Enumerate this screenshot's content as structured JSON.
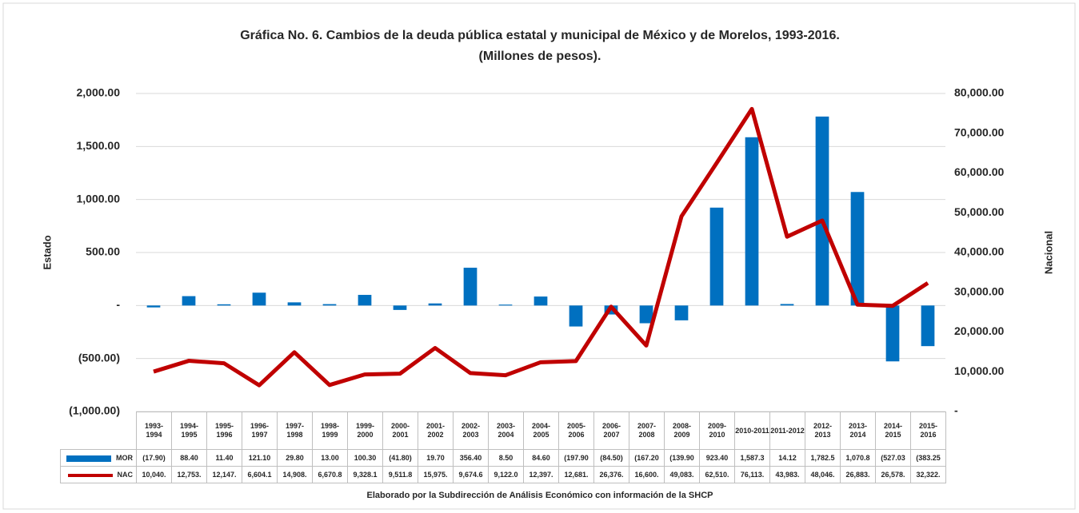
{
  "chart_data": {
    "type": "bar",
    "title": "Gráfica No. 6. Cambios de la deuda pública estatal y municipal de México y de Morelos, 1993-2016.",
    "subtitle": "(Millones de pesos).",
    "ylabel": "Estado",
    "y2label": "Nacional",
    "source": "Elaborado por la Subdirección de Análisis Económico con información de la SHCP",
    "categories": [
      "1993-1994",
      "1994-1995",
      "1995-1996",
      "1996-1997",
      "1997-1998",
      "1998-1999",
      "1999-2000",
      "2000-2001",
      "2001-2002",
      "2002-2003",
      "2003-2004",
      "2004-2005",
      "2005-2006",
      "2006-2007",
      "2007-2008",
      "2008-2009",
      "2009-2010",
      "2010-2011",
      "2011-2012",
      "2012-2013",
      "2013-2014",
      "2014-2015",
      "2015-2016"
    ],
    "series": [
      {
        "name": "MOR",
        "type": "bar",
        "color": "#0070c0",
        "values": [
          -17.9,
          88.4,
          11.4,
          121.1,
          29.8,
          13.0,
          100.3,
          -41.8,
          19.7,
          356.4,
          8.5,
          84.6,
          -197.9,
          -84.5,
          -167.2,
          -139.9,
          923.4,
          1587.3,
          14.12,
          1782.5,
          1070.8,
          -527.03,
          -383.25
        ],
        "value_labels": [
          "(17.90)",
          "88.40",
          "11.40",
          "121.10",
          "29.80",
          "13.00",
          "100.30",
          "(41.80)",
          "19.70",
          "356.40",
          "8.50",
          "84.60",
          "(197.90",
          "(84.50)",
          "(167.20",
          "(139.90",
          "923.40",
          "1,587.3",
          "14.12",
          "1,782.5",
          "1,070.8",
          "(527.03",
          "(383.25"
        ]
      },
      {
        "name": "NAC",
        "type": "line",
        "axis": "y2",
        "color": "#c00000",
        "values": [
          10040,
          12753,
          12147,
          6604.1,
          14908,
          6670.8,
          9328.1,
          9511.8,
          15975,
          9674.6,
          9122.0,
          12397,
          12681,
          26376,
          16600,
          49083,
          62510,
          76113,
          43983,
          48046,
          26883,
          26578,
          32322
        ],
        "value_labels": [
          "10,040.",
          "12,753.",
          "12,147.",
          "6,604.1",
          "14,908.",
          "6,670.8",
          "9,328.1",
          "9,511.8",
          "15,975.",
          "9,674.6",
          "9,122.0",
          "12,397.",
          "12,681.",
          "26,376.",
          "16,600.",
          "49,083.",
          "62,510.",
          "76,113.",
          "43,983.",
          "48,046.",
          "26,883.",
          "26,578.",
          "32,322."
        ]
      }
    ],
    "ylim": [
      -1000,
      2000
    ],
    "yticks": [
      {
        "value": -1000,
        "label": "(1,000.00)"
      },
      {
        "value": -500,
        "label": "(500.00)"
      },
      {
        "value": 0,
        "label": "-"
      },
      {
        "value": 500,
        "label": "500.00"
      },
      {
        "value": 1000,
        "label": "1,000.00"
      },
      {
        "value": 1500,
        "label": "1,500.00"
      },
      {
        "value": 2000,
        "label": "2,000.00"
      }
    ],
    "y2lim": [
      0,
      80000
    ],
    "y2ticks": [
      {
        "value": 0,
        "label": "-"
      },
      {
        "value": 10000,
        "label": "10,000.00"
      },
      {
        "value": 20000,
        "label": "20,000.00"
      },
      {
        "value": 30000,
        "label": "30,000.00"
      },
      {
        "value": 40000,
        "label": "40,000.00"
      },
      {
        "value": 50000,
        "label": "50,000.00"
      },
      {
        "value": 60000,
        "label": "60,000.00"
      },
      {
        "value": 70000,
        "label": "70,000.00"
      },
      {
        "value": 80000,
        "label": "80,000.00"
      }
    ],
    "grid": true
  }
}
